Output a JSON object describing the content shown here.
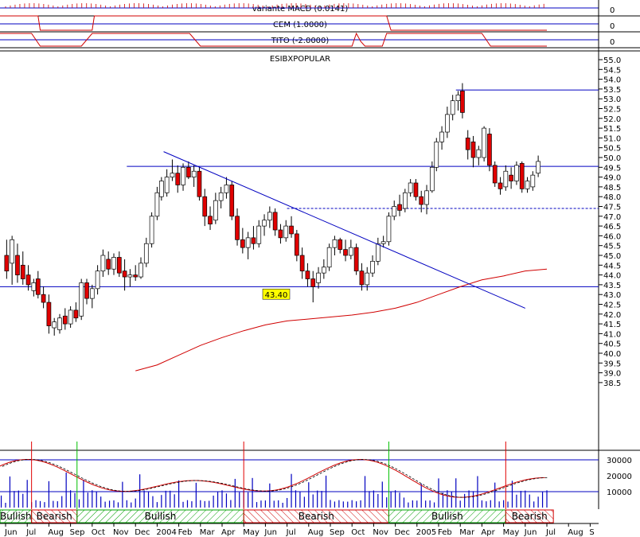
{
  "chart_data": {
    "type": "candlestick",
    "title": "ESIBXPOPULAR",
    "x_tick_labels": [
      {
        "label": "Jun",
        "month": 0
      },
      {
        "label": "Jul",
        "month": 1
      },
      {
        "label": "Aug",
        "month": 2
      },
      {
        "label": "Sep",
        "month": 3
      },
      {
        "label": "Oct",
        "month": 4
      },
      {
        "label": "Nov",
        "month": 5
      },
      {
        "label": "Dec",
        "month": 6
      },
      {
        "label": "2004",
        "month": 7
      },
      {
        "label": "Feb",
        "month": 8
      },
      {
        "label": "Mar",
        "month": 9
      },
      {
        "label": "Apr",
        "month": 10
      },
      {
        "label": "May",
        "month": 11
      },
      {
        "label": "Jun",
        "month": 12
      },
      {
        "label": "Jul",
        "month": 13
      },
      {
        "label": "Aug",
        "month": 14
      },
      {
        "label": "Sep",
        "month": 15
      },
      {
        "label": "Oct",
        "month": 16
      },
      {
        "label": "Nov",
        "month": 17
      },
      {
        "label": "Dec",
        "month": 18
      },
      {
        "label": "2005",
        "month": 19
      },
      {
        "label": "Feb",
        "month": 20
      },
      {
        "label": "Mar",
        "month": 21
      },
      {
        "label": "Apr",
        "month": 22
      },
      {
        "label": "May",
        "month": 23
      },
      {
        "label": "Jun",
        "month": 24
      },
      {
        "label": "Jul",
        "month": 25
      },
      {
        "label": "Aug",
        "month": 26
      },
      {
        "label": "S",
        "month": 27
      }
    ],
    "price_axis": {
      "ylim": [
        38.0,
        55.5
      ],
      "ticks": [
        "55.0",
        "54.5",
        "54.0",
        "53.5",
        "53.0",
        "52.5",
        "52.0",
        "51.5",
        "51.0",
        "50.5",
        "50.0",
        "49.5",
        "49.0",
        "48.5",
        "48.0",
        "47.5",
        "47.0",
        "46.5",
        "46.0",
        "45.5",
        "45.0",
        "44.5",
        "44.0",
        "43.5",
        "43.0",
        "42.5",
        "42.0",
        "41.5",
        "41.0",
        "40.5",
        "40.0",
        "39.5",
        "39.0",
        "38.5"
      ]
    },
    "candles": [
      {
        "m": 0.05,
        "o": 45.0,
        "h": 45.8,
        "l": 43.8,
        "c": 44.2
      },
      {
        "m": 0.3,
        "o": 44.6,
        "h": 46.0,
        "l": 43.5,
        "c": 45.8
      },
      {
        "m": 0.55,
        "o": 45.0,
        "h": 45.6,
        "l": 43.6,
        "c": 44.0
      },
      {
        "m": 0.8,
        "o": 44.5,
        "h": 45.2,
        "l": 43.5,
        "c": 43.8
      },
      {
        "m": 1.05,
        "o": 44.0,
        "h": 44.5,
        "l": 43.2,
        "c": 43.5
      },
      {
        "m": 1.3,
        "o": 43.2,
        "h": 43.8,
        "l": 42.9,
        "c": 43.6
      },
      {
        "m": 1.5,
        "o": 43.8,
        "h": 44.2,
        "l": 42.8,
        "c": 43.0
      },
      {
        "m": 1.75,
        "o": 43.0,
        "h": 43.4,
        "l": 42.3,
        "c": 42.6
      },
      {
        "m": 2.0,
        "o": 42.6,
        "h": 43.0,
        "l": 41.0,
        "c": 41.4
      },
      {
        "m": 2.25,
        "o": 41.3,
        "h": 41.8,
        "l": 40.9,
        "c": 41.6
      },
      {
        "m": 2.5,
        "o": 41.2,
        "h": 42.0,
        "l": 41.0,
        "c": 41.8
      },
      {
        "m": 2.75,
        "o": 41.9,
        "h": 42.3,
        "l": 41.2,
        "c": 41.5
      },
      {
        "m": 3.0,
        "o": 41.5,
        "h": 42.4,
        "l": 41.3,
        "c": 42.2
      },
      {
        "m": 3.25,
        "o": 42.2,
        "h": 42.6,
        "l": 41.6,
        "c": 41.8
      },
      {
        "m": 3.5,
        "o": 41.9,
        "h": 43.8,
        "l": 41.7,
        "c": 43.6
      },
      {
        "m": 3.75,
        "o": 43.6,
        "h": 43.8,
        "l": 42.5,
        "c": 42.8
      },
      {
        "m": 4.0,
        "o": 42.8,
        "h": 43.5,
        "l": 42.3,
        "c": 43.3
      },
      {
        "m": 4.25,
        "o": 43.3,
        "h": 44.5,
        "l": 43.0,
        "c": 44.2
      },
      {
        "m": 4.5,
        "o": 44.2,
        "h": 45.3,
        "l": 43.9,
        "c": 45.0
      },
      {
        "m": 4.75,
        "o": 44.8,
        "h": 45.2,
        "l": 44.0,
        "c": 44.3
      },
      {
        "m": 5.0,
        "o": 44.3,
        "h": 45.1,
        "l": 44.0,
        "c": 44.9
      },
      {
        "m": 5.25,
        "o": 44.9,
        "h": 45.2,
        "l": 43.9,
        "c": 44.1
      },
      {
        "m": 5.5,
        "o": 44.2,
        "h": 44.8,
        "l": 43.2,
        "c": 43.9
      },
      {
        "m": 5.75,
        "o": 43.9,
        "h": 44.3,
        "l": 43.4,
        "c": 44.0
      },
      {
        "m": 6.0,
        "o": 44.0,
        "h": 44.5,
        "l": 43.7,
        "c": 43.9
      },
      {
        "m": 6.25,
        "o": 43.9,
        "h": 44.9,
        "l": 43.8,
        "c": 44.6
      },
      {
        "m": 6.5,
        "o": 44.6,
        "h": 45.9,
        "l": 44.4,
        "c": 45.6
      },
      {
        "m": 6.75,
        "o": 45.6,
        "h": 47.2,
        "l": 45.4,
        "c": 47.0
      },
      {
        "m": 7.0,
        "o": 47.0,
        "h": 48.5,
        "l": 46.8,
        "c": 48.2
      },
      {
        "m": 7.2,
        "o": 48.0,
        "h": 49.0,
        "l": 47.8,
        "c": 48.8
      },
      {
        "m": 7.45,
        "o": 48.2,
        "h": 49.4,
        "l": 48.0,
        "c": 49.0
      },
      {
        "m": 7.7,
        "o": 49.0,
        "h": 49.9,
        "l": 48.8,
        "c": 49.2
      },
      {
        "m": 7.95,
        "o": 49.2,
        "h": 49.6,
        "l": 48.2,
        "c": 48.6
      },
      {
        "m": 8.2,
        "o": 48.6,
        "h": 49.7,
        "l": 48.3,
        "c": 49.5
      },
      {
        "m": 8.45,
        "o": 49.5,
        "h": 49.8,
        "l": 48.9,
        "c": 49.0
      },
      {
        "m": 8.7,
        "o": 49.0,
        "h": 49.6,
        "l": 48.5,
        "c": 49.3
      },
      {
        "m": 8.95,
        "o": 49.3,
        "h": 49.5,
        "l": 47.8,
        "c": 48.0
      },
      {
        "m": 9.2,
        "o": 48.0,
        "h": 48.4,
        "l": 46.5,
        "c": 47.0
      },
      {
        "m": 9.45,
        "o": 47.0,
        "h": 47.5,
        "l": 46.3,
        "c": 46.6
      },
      {
        "m": 9.7,
        "o": 46.8,
        "h": 48.2,
        "l": 46.6,
        "c": 47.8
      },
      {
        "m": 9.95,
        "o": 47.8,
        "h": 48.5,
        "l": 47.4,
        "c": 48.2
      },
      {
        "m": 10.2,
        "o": 48.2,
        "h": 49.0,
        "l": 47.9,
        "c": 48.6
      },
      {
        "m": 10.45,
        "o": 48.6,
        "h": 48.8,
        "l": 46.8,
        "c": 47.0
      },
      {
        "m": 10.7,
        "o": 47.0,
        "h": 47.4,
        "l": 45.5,
        "c": 45.8
      },
      {
        "m": 10.95,
        "o": 45.8,
        "h": 46.4,
        "l": 45.1,
        "c": 45.4
      },
      {
        "m": 11.2,
        "o": 45.4,
        "h": 46.2,
        "l": 44.8,
        "c": 45.9
      },
      {
        "m": 11.45,
        "o": 45.9,
        "h": 46.5,
        "l": 45.3,
        "c": 45.6
      },
      {
        "m": 11.7,
        "o": 45.6,
        "h": 46.8,
        "l": 45.4,
        "c": 46.5
      },
      {
        "m": 11.95,
        "o": 46.5,
        "h": 47.1,
        "l": 46.0,
        "c": 46.8
      },
      {
        "m": 12.2,
        "o": 46.8,
        "h": 47.5,
        "l": 46.4,
        "c": 47.2
      },
      {
        "m": 12.45,
        "o": 47.2,
        "h": 47.4,
        "l": 46.0,
        "c": 46.3
      },
      {
        "m": 12.7,
        "o": 46.3,
        "h": 46.6,
        "l": 45.6,
        "c": 45.9
      },
      {
        "m": 12.95,
        "o": 45.9,
        "h": 46.8,
        "l": 45.7,
        "c": 46.5
      },
      {
        "m": 13.2,
        "o": 46.5,
        "h": 47.0,
        "l": 45.9,
        "c": 46.1
      },
      {
        "m": 13.45,
        "o": 46.1,
        "h": 46.3,
        "l": 44.7,
        "c": 45.0
      },
      {
        "m": 13.7,
        "o": 45.0,
        "h": 45.4,
        "l": 43.8,
        "c": 44.2
      },
      {
        "m": 13.95,
        "o": 44.2,
        "h": 44.6,
        "l": 43.4,
        "c": 43.8
      },
      {
        "m": 14.2,
        "o": 43.8,
        "h": 44.2,
        "l": 42.6,
        "c": 43.4
      },
      {
        "m": 14.45,
        "o": 43.6,
        "h": 44.4,
        "l": 43.3,
        "c": 44.1
      },
      {
        "m": 14.7,
        "o": 44.1,
        "h": 44.8,
        "l": 43.8,
        "c": 44.4
      },
      {
        "m": 14.95,
        "o": 44.4,
        "h": 45.6,
        "l": 44.2,
        "c": 45.4
      },
      {
        "m": 15.2,
        "o": 45.4,
        "h": 46.0,
        "l": 45.0,
        "c": 45.8
      },
      {
        "m": 15.45,
        "o": 45.8,
        "h": 45.9,
        "l": 45.1,
        "c": 45.3
      },
      {
        "m": 15.7,
        "o": 45.3,
        "h": 45.8,
        "l": 44.7,
        "c": 45.0
      },
      {
        "m": 15.95,
        "o": 45.0,
        "h": 45.8,
        "l": 44.8,
        "c": 45.4
      },
      {
        "m": 16.2,
        "o": 45.4,
        "h": 45.6,
        "l": 44.0,
        "c": 44.2
      },
      {
        "m": 16.45,
        "o": 44.2,
        "h": 44.6,
        "l": 43.2,
        "c": 43.5
      },
      {
        "m": 16.7,
        "o": 43.5,
        "h": 44.4,
        "l": 43.2,
        "c": 44.1
      },
      {
        "m": 16.95,
        "o": 44.1,
        "h": 45.0,
        "l": 43.9,
        "c": 44.7
      },
      {
        "m": 17.2,
        "o": 44.7,
        "h": 45.9,
        "l": 44.5,
        "c": 45.6
      },
      {
        "m": 17.45,
        "o": 45.6,
        "h": 46.0,
        "l": 45.4,
        "c": 45.7
      },
      {
        "m": 17.7,
        "o": 45.7,
        "h": 47.2,
        "l": 45.5,
        "c": 47.0
      },
      {
        "m": 17.95,
        "o": 47.0,
        "h": 47.8,
        "l": 46.8,
        "c": 47.5
      },
      {
        "m": 18.2,
        "o": 47.6,
        "h": 48.1,
        "l": 47.0,
        "c": 47.3
      },
      {
        "m": 18.45,
        "o": 47.4,
        "h": 48.4,
        "l": 47.2,
        "c": 48.2
      },
      {
        "m": 18.7,
        "o": 48.2,
        "h": 48.9,
        "l": 48.0,
        "c": 48.7
      },
      {
        "m": 18.95,
        "o": 48.7,
        "h": 48.9,
        "l": 47.8,
        "c": 48.0
      },
      {
        "m": 19.2,
        "o": 48.0,
        "h": 48.3,
        "l": 47.2,
        "c": 47.6
      },
      {
        "m": 19.45,
        "o": 47.6,
        "h": 48.6,
        "l": 47.1,
        "c": 48.3
      },
      {
        "m": 19.7,
        "o": 48.3,
        "h": 49.8,
        "l": 48.2,
        "c": 49.5
      },
      {
        "m": 19.9,
        "o": 49.5,
        "h": 51.0,
        "l": 49.3,
        "c": 50.8
      },
      {
        "m": 20.15,
        "o": 50.8,
        "h": 51.6,
        "l": 50.4,
        "c": 51.3
      },
      {
        "m": 20.4,
        "o": 51.3,
        "h": 52.6,
        "l": 51.0,
        "c": 52.2
      },
      {
        "m": 20.65,
        "o": 52.2,
        "h": 53.2,
        "l": 51.9,
        "c": 52.9
      },
      {
        "m": 20.9,
        "o": 52.9,
        "h": 53.4,
        "l": 52.4,
        "c": 53.2
      },
      {
        "m": 21.1,
        "o": 53.4,
        "h": 53.8,
        "l": 52.0,
        "c": 52.3
      },
      {
        "m": 21.35,
        "o": 51.0,
        "h": 51.4,
        "l": 49.9,
        "c": 50.4
      },
      {
        "m": 21.6,
        "o": 50.8,
        "h": 51.1,
        "l": 49.5,
        "c": 50.0
      },
      {
        "m": 21.85,
        "o": 50.0,
        "h": 50.6,
        "l": 49.6,
        "c": 50.4
      },
      {
        "m": 22.1,
        "o": 50.0,
        "h": 51.6,
        "l": 49.8,
        "c": 51.5
      },
      {
        "m": 22.35,
        "o": 51.2,
        "h": 51.5,
        "l": 49.3,
        "c": 49.6
      },
      {
        "m": 22.6,
        "o": 49.6,
        "h": 49.8,
        "l": 48.5,
        "c": 48.7
      },
      {
        "m": 22.85,
        "o": 48.7,
        "h": 49.0,
        "l": 48.1,
        "c": 48.4
      },
      {
        "m": 23.1,
        "o": 48.5,
        "h": 49.6,
        "l": 48.3,
        "c": 49.3
      },
      {
        "m": 23.35,
        "o": 49.1,
        "h": 49.5,
        "l": 48.4,
        "c": 48.8
      },
      {
        "m": 23.6,
        "o": 48.8,
        "h": 49.8,
        "l": 48.6,
        "c": 49.6
      },
      {
        "m": 23.85,
        "o": 49.7,
        "h": 49.8,
        "l": 48.2,
        "c": 48.4
      },
      {
        "m": 24.1,
        "o": 48.4,
        "h": 49.0,
        "l": 48.2,
        "c": 48.8
      },
      {
        "m": 24.35,
        "o": 48.5,
        "h": 49.3,
        "l": 48.3,
        "c": 49.1
      },
      {
        "m": 24.6,
        "o": 49.2,
        "h": 50.1,
        "l": 49.0,
        "c": 49.8
      }
    ],
    "moving_average": [
      {
        "m": 6.0,
        "v": 39.1
      },
      {
        "m": 7.0,
        "v": 39.4
      },
      {
        "m": 8.0,
        "v": 39.9
      },
      {
        "m": 9.0,
        "v": 40.4
      },
      {
        "m": 10.0,
        "v": 40.8
      },
      {
        "m": 11.0,
        "v": 41.15
      },
      {
        "m": 12.0,
        "v": 41.45
      },
      {
        "m": 13.0,
        "v": 41.65
      },
      {
        "m": 14.0,
        "v": 41.75
      },
      {
        "m": 15.0,
        "v": 41.85
      },
      {
        "m": 16.0,
        "v": 41.95
      },
      {
        "m": 17.0,
        "v": 42.1
      },
      {
        "m": 18.0,
        "v": 42.3
      },
      {
        "m": 19.0,
        "v": 42.6
      },
      {
        "m": 20.0,
        "v": 43.0
      },
      {
        "m": 21.0,
        "v": 43.4
      },
      {
        "m": 22.0,
        "v": 43.75
      },
      {
        "m": 23.0,
        "v": 43.95
      },
      {
        "m": 24.0,
        "v": 44.2
      },
      {
        "m": 25.0,
        "v": 44.3
      }
    ],
    "trendline": [
      {
        "m": 7.3,
        "v": 50.3
      },
      {
        "m": 24.0,
        "v": 42.3
      }
    ],
    "resistance_lines": [
      {
        "m0": 20.8,
        "m1": 28.5,
        "v": 53.45,
        "style": "solid"
      },
      {
        "m0": 5.6,
        "m1": 28.5,
        "v": 49.55,
        "style": "solid"
      },
      {
        "m0": 13.0,
        "m1": 28.5,
        "v": 47.4,
        "style": "dashed"
      },
      {
        "m0": -0.5,
        "m1": 28.5,
        "v": 43.4,
        "style": "solid"
      }
    ],
    "label_box": {
      "text": "43.40",
      "m": 12.5,
      "v": 43.0
    },
    "indicator_panels": [
      {
        "label": "variante MACD (0.0141)",
        "tick": "0",
        "line_v": 0
      },
      {
        "label": "CEM (1.0000)",
        "tick": "0",
        "line_v": 0
      },
      {
        "label": "TITO (-2.0000)",
        "tick": "0",
        "line_v": 0
      }
    ],
    "volume_axis": {
      "ticks": [
        "30000",
        "20000",
        "10000"
      ],
      "values": [
        30000,
        20000,
        10000
      ],
      "max": 36000
    },
    "trend_bands": [
      {
        "label": "Bullish",
        "m0": -0.6,
        "m1": 1.2,
        "kind": "bull"
      },
      {
        "label": "Bearish",
        "m0": 1.2,
        "m1": 3.3,
        "kind": "bear"
      },
      {
        "label": "Bullish",
        "m0": 3.3,
        "m1": 11.0,
        "kind": "bull"
      },
      {
        "label": "Bearish",
        "m0": 11.0,
        "m1": 17.7,
        "kind": "bear"
      },
      {
        "label": "Bullish",
        "m0": 17.7,
        "m1": 23.1,
        "kind": "bull"
      },
      {
        "label": "Bearish",
        "m0": 23.1,
        "m1": 25.3,
        "kind": "bear"
      }
    ],
    "signal_lines": [
      {
        "m": 1.2,
        "color": "#e00000"
      },
      {
        "m": 3.3,
        "color": "#00c000"
      },
      {
        "m": 11.0,
        "color": "#e00000"
      },
      {
        "m": 17.7,
        "color": "#00c000"
      },
      {
        "m": 23.1,
        "color": "#e00000"
      }
    ],
    "colors": {
      "up": "#ffffff",
      "down": "#e00000",
      "line": "#0000c0",
      "ma": "#d00000",
      "bull": "#00a000",
      "bear": "#d00000"
    }
  }
}
